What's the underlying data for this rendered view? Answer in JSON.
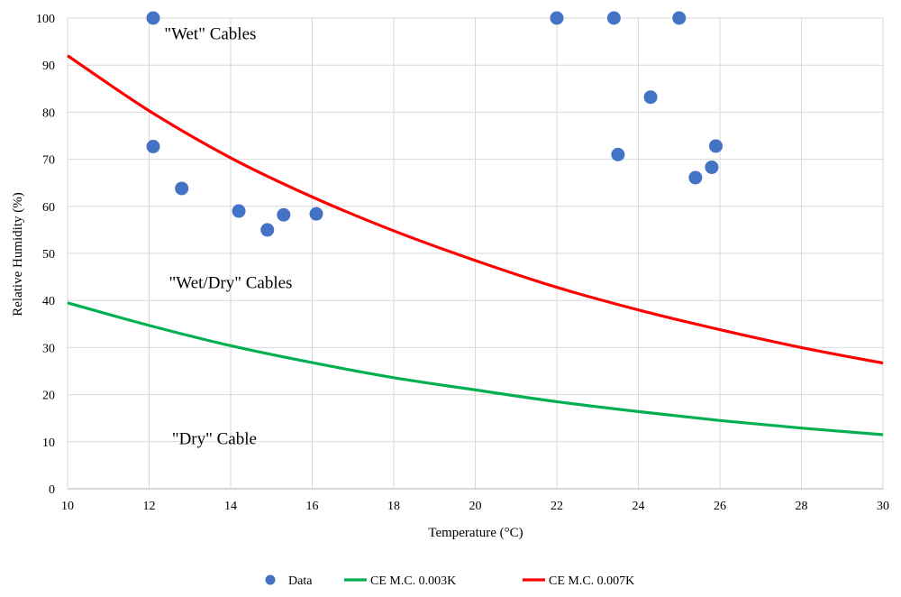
{
  "chart_data": {
    "type": "scatter",
    "xlabel": "Temperature (°C)",
    "ylabel": "Relative Humidity (%)",
    "xlim": [
      10,
      30
    ],
    "ylim": [
      0,
      100
    ],
    "x_ticks": [
      10,
      12,
      14,
      16,
      18,
      20,
      22,
      24,
      26,
      28,
      30
    ],
    "y_ticks": [
      0,
      10,
      20,
      30,
      40,
      50,
      60,
      70,
      80,
      90,
      100
    ],
    "grid": true,
    "legend_position": "bottom",
    "series": [
      {
        "name": "Data",
        "kind": "scatter",
        "color": "#4472C4",
        "points": [
          [
            12.1,
            100
          ],
          [
            12.1,
            72.7
          ],
          [
            12.8,
            63.8
          ],
          [
            14.2,
            59.0
          ],
          [
            14.9,
            55.0
          ],
          [
            15.3,
            58.2
          ],
          [
            16.1,
            58.4
          ],
          [
            22.0,
            100
          ],
          [
            23.4,
            100
          ],
          [
            23.5,
            71.0
          ],
          [
            24.3,
            83.2
          ],
          [
            25.0,
            100
          ],
          [
            25.4,
            66.1
          ],
          [
            25.8,
            68.3
          ],
          [
            25.9,
            72.8
          ]
        ]
      },
      {
        "name": "CE M.C. 0.003K",
        "kind": "line",
        "color": "#00B050",
        "points": [
          [
            10,
            39.5
          ],
          [
            12,
            34.7
          ],
          [
            14,
            30.4
          ],
          [
            16,
            26.8
          ],
          [
            18,
            23.6
          ],
          [
            20,
            21.0
          ],
          [
            22,
            18.5
          ],
          [
            24,
            16.4
          ],
          [
            26,
            14.5
          ],
          [
            28,
            12.9
          ],
          [
            30,
            11.5
          ]
        ]
      },
      {
        "name": "CE M.C. 0.007K",
        "kind": "line",
        "color": "#FF0000",
        "points": [
          [
            10,
            92
          ],
          [
            12,
            80.3
          ],
          [
            14,
            70.3
          ],
          [
            16,
            62.0
          ],
          [
            18,
            54.8
          ],
          [
            20,
            48.5
          ],
          [
            22,
            42.8
          ],
          [
            24,
            38.0
          ],
          [
            26,
            33.8
          ],
          [
            28,
            30.0
          ],
          [
            30,
            26.7
          ]
        ]
      }
    ],
    "annotations": [
      {
        "text": "\"Wet\" Cables",
        "x": 13.5,
        "y": 95.5
      },
      {
        "text": "\"Wet/Dry\" Cables",
        "x": 14.0,
        "y": 42.6
      },
      {
        "text": "\"Dry\" Cable",
        "x": 13.6,
        "y": 9.5
      }
    ]
  }
}
